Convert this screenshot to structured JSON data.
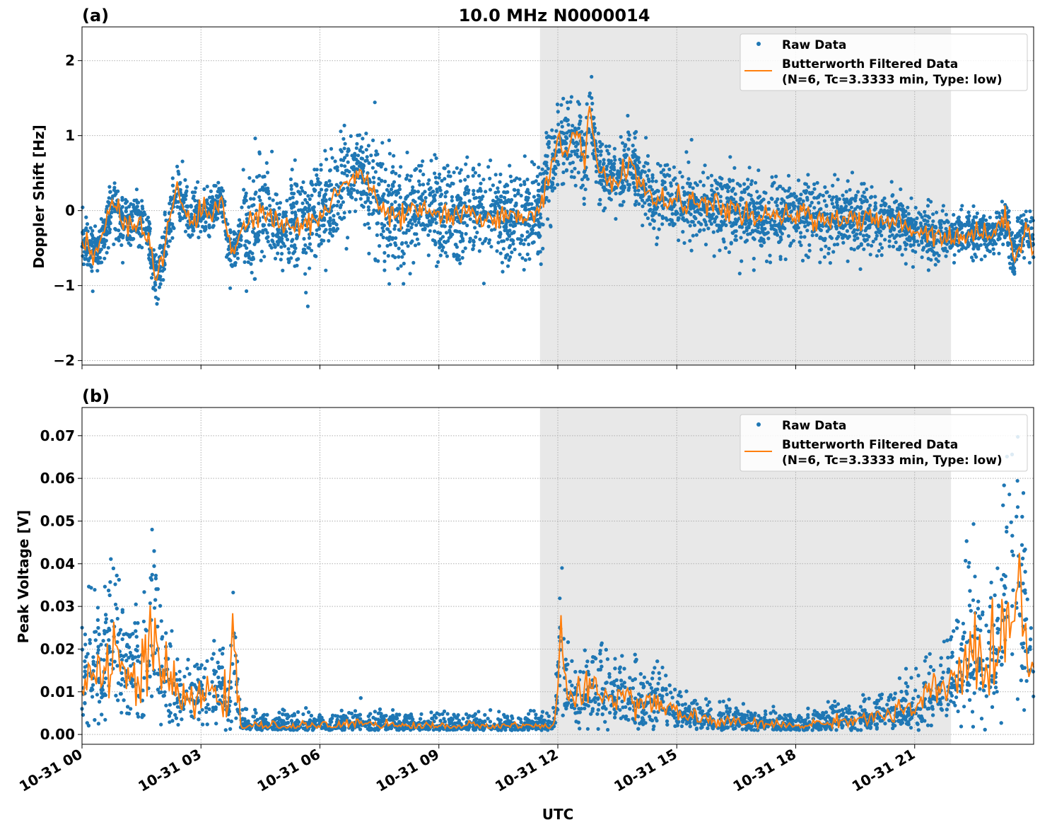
{
  "chart_data": [
    {
      "type": "scatter",
      "panel_label": "(a)",
      "title": "10.0 MHz N0000014",
      "xlabel": "",
      "ylabel": "Doppler Shift [Hz]",
      "xlim_hours": [
        0,
        24
      ],
      "ylim": [
        -2.06,
        2.45
      ],
      "yticks": [
        -2,
        -1,
        0,
        1,
        2
      ],
      "grid": true,
      "legend_placement": "top-right",
      "shaded_region_utc": [
        "10-31 11:33",
        "10-31 21:55"
      ],
      "series": [
        {
          "name": "Raw Data",
          "style": "points",
          "color": "#1f77b4",
          "spread_by_hour": [
            0.3,
            0.35,
            0.35,
            0.3,
            0.6,
            0.6,
            0.6,
            0.7,
            0.6,
            0.55,
            0.55,
            0.55,
            0.45,
            0.4,
            0.35,
            0.4,
            0.45,
            0.45,
            0.45,
            0.4,
            0.35,
            0.3,
            0.25,
            0.3
          ]
        },
        {
          "name": "Butterworth Filtered Data\n(N=6, Tc=3.3333 min, Type: low)",
          "style": "line",
          "color": "#ff7f0e",
          "x": [
            0,
            0.4,
            0.8,
            1.0,
            1.5,
            1.75,
            1.85,
            2.0,
            2.2,
            2.4,
            2.5,
            2.7,
            3.0,
            3.3,
            3.5,
            3.7,
            3.8,
            4.0,
            4.5,
            5.0,
            5.5,
            6.0,
            6.5,
            7.0,
            7.3,
            7.5,
            8.0,
            8.5,
            9.0,
            9.5,
            10.0,
            10.5,
            11.0,
            11.5,
            11.8,
            12.0,
            12.2,
            12.5,
            12.7,
            12.8,
            13.0,
            13.5,
            13.8,
            14.2,
            14.5,
            15,
            15.5,
            16,
            16.5,
            17,
            17.5,
            18,
            18.5,
            19,
            19.5,
            20,
            20.5,
            21,
            21.5,
            22,
            22.5,
            23,
            23.3,
            23.5,
            23.8,
            24
          ],
          "y": [
            -0.4,
            -0.55,
            0.1,
            -0.15,
            -0.15,
            -0.5,
            -0.95,
            -0.7,
            -0.2,
            0.35,
            0.1,
            -0.1,
            -0.05,
            0.0,
            0.2,
            -0.5,
            -0.55,
            -0.3,
            0.0,
            -0.2,
            -0.2,
            -0.1,
            0.3,
            0.5,
            0.3,
            0.0,
            -0.1,
            0.0,
            -0.05,
            -0.1,
            -0.05,
            -0.1,
            -0.1,
            0.0,
            0.5,
            1.0,
            0.8,
            1.0,
            0.6,
            1.5,
            0.5,
            0.4,
            0.6,
            0.3,
            0.1,
            0.15,
            0.1,
            0.05,
            0.0,
            -0.1,
            -0.1,
            -0.05,
            -0.1,
            -0.1,
            -0.1,
            -0.15,
            -0.15,
            -0.25,
            -0.3,
            -0.35,
            -0.3,
            -0.3,
            -0.1,
            -0.6,
            -0.2,
            -0.5
          ]
        }
      ]
    },
    {
      "type": "scatter",
      "panel_label": "(b)",
      "title": "",
      "xlabel": "UTC",
      "ylabel": "Peak Voltage [V]",
      "xlim_hours": [
        0,
        24
      ],
      "ylim": [
        -0.0023,
        0.0766
      ],
      "yticks": [
        0.0,
        0.01,
        0.02,
        0.03,
        0.04,
        0.05,
        0.06,
        0.07
      ],
      "ytick_labels": [
        "0.00",
        "0.01",
        "0.02",
        "0.03",
        "0.04",
        "0.05",
        "0.06",
        "0.07"
      ],
      "xtick_labels": [
        "10-31 00",
        "10-31 03",
        "10-31 06",
        "10-31 09",
        "10-31 12",
        "10-31 15",
        "10-31 18",
        "10-31 21"
      ],
      "xtick_hours": [
        0,
        3,
        6,
        9,
        12,
        15,
        18,
        21
      ],
      "grid": true,
      "legend_placement": "top-right",
      "shaded_region_utc": [
        "10-31 11:33",
        "10-31 21:55"
      ],
      "series": [
        {
          "name": "Raw Data",
          "style": "points",
          "color": "#1f77b4"
        },
        {
          "name": "Butterworth Filtered Data\n(N=6, Tc=3.3333 min, Type: low)",
          "style": "line",
          "color": "#ff7f0e",
          "x": [
            0,
            0.2,
            0.5,
            0.8,
            1.0,
            1.5,
            1.8,
            2.0,
            2.5,
            3.0,
            3.5,
            3.7,
            3.8,
            3.95,
            4.0,
            6.5,
            7.0,
            7.5,
            8,
            11.9,
            12.0,
            12.1,
            12.2,
            12.5,
            13,
            13.5,
            14,
            14.5,
            15,
            16,
            17,
            18,
            19,
            20,
            21,
            21.5,
            22,
            22.5,
            23,
            23.3,
            23.6,
            24
          ],
          "y": [
            0.01,
            0.02,
            0.012,
            0.025,
            0.015,
            0.012,
            0.025,
            0.015,
            0.008,
            0.008,
            0.012,
            0.005,
            0.02,
            0.008,
            0.002,
            0.002,
            0.003,
            0.0025,
            0.002,
            0.002,
            0.01,
            0.028,
            0.01,
            0.008,
            0.01,
            0.009,
            0.008,
            0.007,
            0.005,
            0.003,
            0.0025,
            0.002,
            0.003,
            0.004,
            0.006,
            0.01,
            0.012,
            0.02,
            0.015,
            0.03,
            0.035,
            0.012
          ]
        }
      ]
    }
  ],
  "legend": {
    "raw_label": "Raw Data",
    "filtered_line1": "Butterworth Filtered Data",
    "filtered_line2": "(N=6, Tc=3.3333 min, Type: low)"
  }
}
